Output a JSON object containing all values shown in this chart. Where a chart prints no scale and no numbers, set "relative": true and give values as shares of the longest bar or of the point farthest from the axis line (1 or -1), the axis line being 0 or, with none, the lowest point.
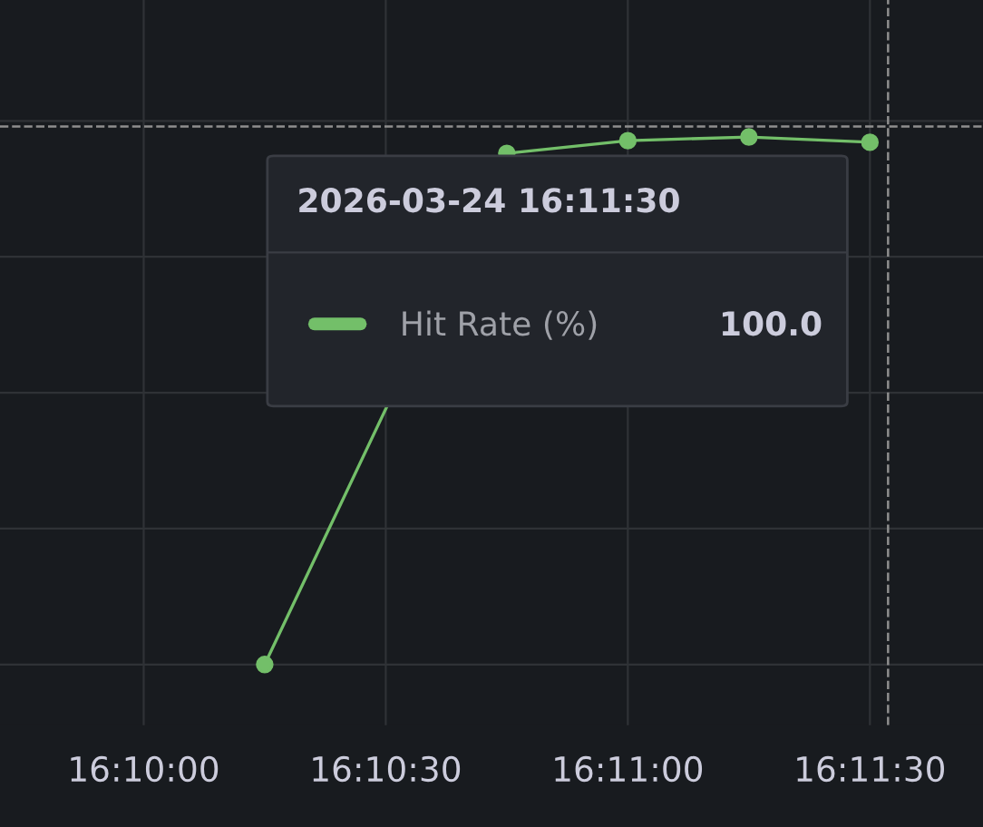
{
  "chart_data": {
    "type": "line",
    "relative": true,
    "x": [
      16.170833,
      16.179167,
      16.183333,
      16.1875,
      16.191667
    ],
    "xlim": [
      16.16172,
      16.19556
    ],
    "xticks": [
      {
        "value": 16.166667,
        "label": "16:10:00"
      },
      {
        "value": 16.175,
        "label": "16:10:30"
      },
      {
        "value": 16.183333,
        "label": "16:11:00"
      },
      {
        "value": 16.191667,
        "label": "16:11:30"
      }
    ],
    "series": [
      {
        "name": "Hit Rate (%)",
        "color": "#73bf69",
        "values": [
          0,
          0.969,
          0.993,
          1,
          0.99
        ]
      }
    ],
    "marker": "circle",
    "line_style": "solid",
    "grid": true,
    "legend": "top",
    "ref_lines": [
      {
        "axis": "x",
        "value": 16.192292,
        "color": "#8e8e8e",
        "line_style": "dashed"
      },
      {
        "axis": "y",
        "value": 1.02,
        "color": "#8e8e8e",
        "line_style": "dashed"
      }
    ],
    "annotations": [
      "2026-03-24 16:11:30",
      "100.0"
    ]
  }
}
